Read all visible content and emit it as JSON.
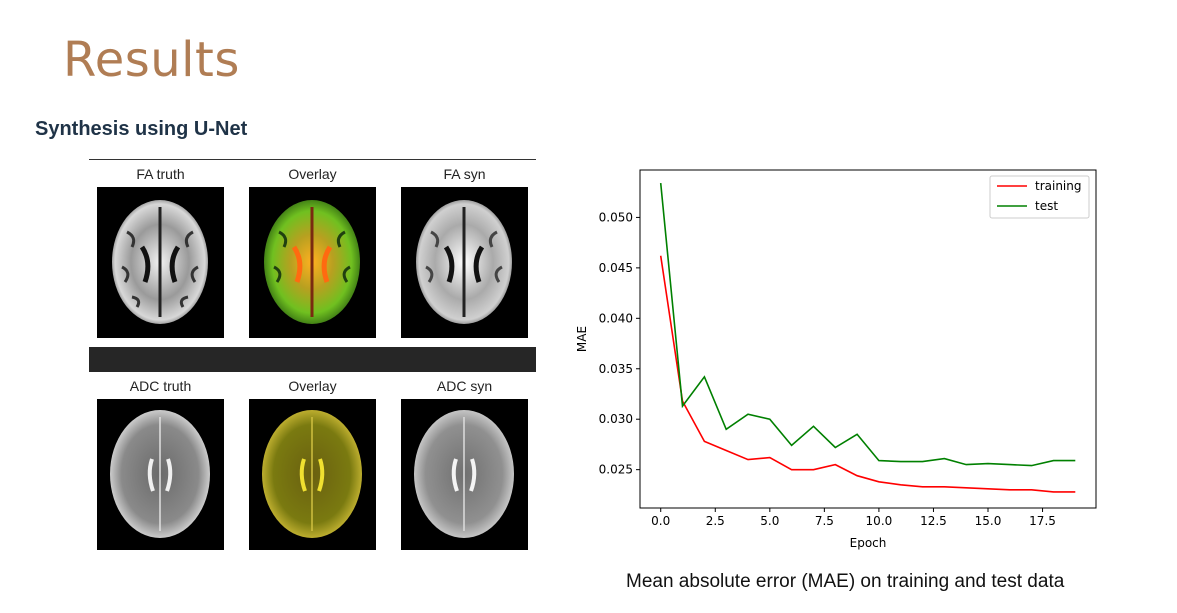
{
  "slide": {
    "title": "Results",
    "subtitle": "Synthesis using U-Net",
    "caption": "Mean absolute error (MAE) on training and test data"
  },
  "figure": {
    "row1": [
      "FA truth",
      "Overlay",
      "FA syn"
    ],
    "row2": [
      "ADC truth",
      "Overlay",
      "ADC syn"
    ]
  },
  "chart_data": {
    "type": "line",
    "xlabel": "Epoch",
    "ylabel": "MAE",
    "xlim": [
      -0.95,
      19.95
    ],
    "ylim": [
      0.0212,
      0.0547
    ],
    "xticks": [
      0.0,
      2.5,
      5.0,
      7.5,
      10.0,
      12.5,
      15.0,
      17.5
    ],
    "xtick_labels": [
      "0.0",
      "2.5",
      "5.0",
      "7.5",
      "10.0",
      "12.5",
      "15.0",
      "17.5"
    ],
    "yticks": [
      0.025,
      0.03,
      0.035,
      0.04,
      0.045,
      0.05
    ],
    "ytick_labels": [
      "0.025",
      "0.030",
      "0.035",
      "0.040",
      "0.045",
      "0.050"
    ],
    "legend_position": "top-right",
    "x": [
      0,
      1,
      2,
      3,
      4,
      5,
      6,
      7,
      8,
      9,
      10,
      11,
      12,
      13,
      14,
      15,
      16,
      17,
      18,
      19
    ],
    "series": [
      {
        "name": "training",
        "color": "#ff0000",
        "values": [
          0.0462,
          0.0318,
          0.0278,
          0.0269,
          0.026,
          0.0262,
          0.025,
          0.025,
          0.0255,
          0.0244,
          0.0238,
          0.0235,
          0.0233,
          0.0233,
          0.0232,
          0.0231,
          0.023,
          0.023,
          0.0228,
          0.0228
        ]
      },
      {
        "name": "test",
        "color": "#008000",
        "values": [
          0.0534,
          0.0313,
          0.0342,
          0.029,
          0.0305,
          0.03,
          0.0274,
          0.0293,
          0.0272,
          0.0285,
          0.0259,
          0.0258,
          0.0258,
          0.0261,
          0.0255,
          0.0256,
          0.0255,
          0.0254,
          0.0259,
          0.0259
        ]
      }
    ]
  }
}
